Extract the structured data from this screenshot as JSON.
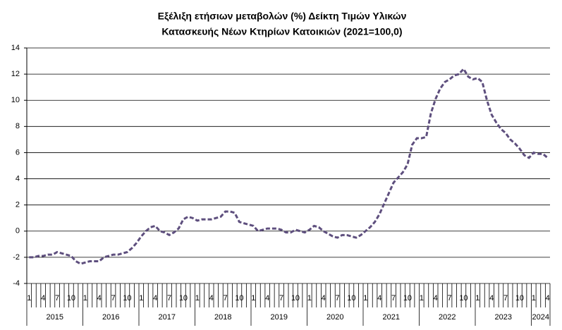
{
  "chart_data": {
    "type": "line",
    "title_lines": [
      "Εξέλιξη ετήσιων μεταβολών (%) Δείκτη Τιμών Υλικών",
      "Κατασκευής Νέων Κτηρίων Κατοικιών (2021=100,0)"
    ],
    "categories": [
      "1",
      null,
      null,
      "4",
      null,
      null,
      "7",
      null,
      null,
      "10",
      null,
      null,
      "1",
      null,
      null,
      "4",
      null,
      null,
      "7",
      null,
      null,
      "10",
      null,
      null,
      "1",
      null,
      null,
      "4",
      null,
      null,
      "7",
      null,
      null,
      "10",
      null,
      null,
      "1",
      null,
      null,
      "4",
      null,
      null,
      "7",
      null,
      null,
      "10",
      null,
      null,
      "1",
      null,
      null,
      "4",
      null,
      null,
      "7",
      null,
      null,
      "10",
      null,
      null,
      "1",
      null,
      null,
      "4",
      null,
      null,
      "7",
      null,
      null,
      "10",
      null,
      null,
      "1",
      null,
      null,
      "4",
      null,
      null,
      "7",
      null,
      null,
      "10",
      null,
      null,
      "1",
      null,
      null,
      "4",
      null,
      null,
      "7",
      null,
      null,
      "10",
      null,
      null,
      "1",
      null,
      null,
      "4",
      null,
      null,
      "7",
      null,
      null,
      "10",
      null,
      null,
      "1",
      null,
      null,
      "4"
    ],
    "year_groups": [
      "2015",
      "2016",
      "2017",
      "2018",
      "2019",
      "2020",
      "2021",
      "2022",
      "2023",
      "2024"
    ],
    "series": [
      {
        "color": "#5e4f7e",
        "values": [
          -2.0,
          -2.0,
          -1.9,
          -1.9,
          -1.8,
          -1.8,
          -1.6,
          -1.7,
          -1.8,
          -1.9,
          -2.3,
          -2.5,
          -2.4,
          -2.3,
          -2.3,
          -2.3,
          -2.0,
          -1.9,
          -1.8,
          -1.8,
          -1.7,
          -1.6,
          -1.3,
          -0.9,
          -0.4,
          0.0,
          0.3,
          0.4,
          0.0,
          -0.1,
          -0.3,
          -0.1,
          0.2,
          0.9,
          1.1,
          1.0,
          0.8,
          0.9,
          0.9,
          0.9,
          1.0,
          1.1,
          1.5,
          1.5,
          1.4,
          0.7,
          0.6,
          0.5,
          0.4,
          0.0,
          0.1,
          0.2,
          0.2,
          0.2,
          0.1,
          -0.1,
          -0.1,
          0.1,
          0.0,
          -0.1,
          0.1,
          0.4,
          0.3,
          0.0,
          -0.2,
          -0.4,
          -0.5,
          -0.3,
          -0.3,
          -0.4,
          -0.5,
          -0.3,
          0.0,
          0.3,
          0.7,
          1.3,
          2.1,
          2.9,
          3.7,
          4.1,
          4.5,
          5.1,
          6.6,
          7.1,
          7.1,
          7.2,
          9.0,
          10.1,
          10.9,
          11.4,
          11.6,
          11.9,
          12.0,
          12.4,
          11.8,
          11.6,
          11.7,
          11.4,
          10.0,
          8.9,
          8.3,
          7.8,
          7.5,
          7.0,
          6.7,
          6.3,
          5.8,
          5.6,
          6.0,
          5.9,
          5.9,
          5.6
        ]
      }
    ],
    "ylim": [
      -4,
      14
    ],
    "yticks": [
      -4,
      -2,
      0,
      2,
      4,
      6,
      8,
      10,
      12,
      14
    ],
    "grid": true
  }
}
